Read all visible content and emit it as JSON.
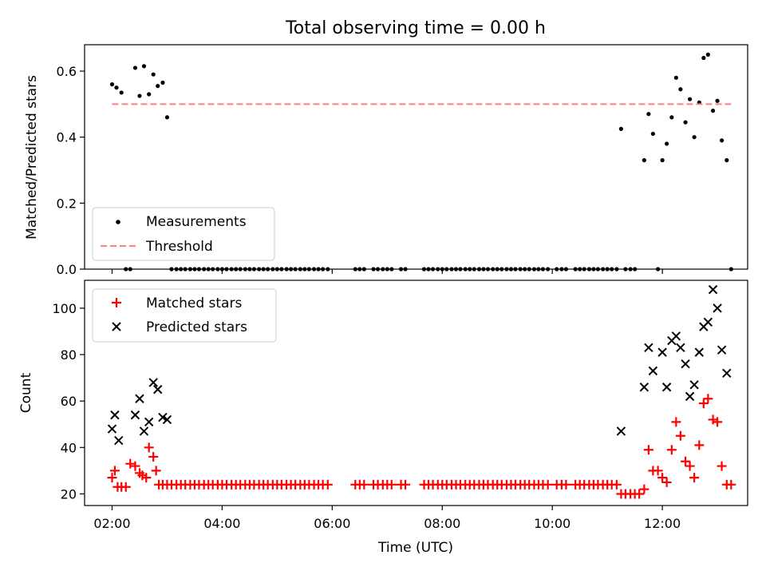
{
  "chart_data": {
    "title": "Total observing time = 0.00 h",
    "xlabel": "Time (UTC)",
    "x_ticks": [
      {
        "label": "02:00",
        "hours": 2
      },
      {
        "label": "04:00",
        "hours": 4
      },
      {
        "label": "06:00",
        "hours": 6
      },
      {
        "label": "08:00",
        "hours": 8
      },
      {
        "label": "10:00",
        "hours": 10
      },
      {
        "label": "12:00",
        "hours": 12
      }
    ],
    "xlim_hours": [
      1.5,
      13.55
    ],
    "panels": [
      {
        "type": "scatter",
        "ylabel": "Matched/Predicted stars",
        "ylim": [
          0,
          0.68
        ],
        "y_ticks": [
          "0.0",
          "0.2",
          "0.4",
          "0.6"
        ],
        "y_tick_values": [
          0,
          0.2,
          0.4,
          0.6
        ],
        "legend_position": "lower-left",
        "series": [
          {
            "name": "Measurements",
            "marker": "dot",
            "color": "#000000",
            "x_hours": [
              2.0,
              2.08,
              2.17,
              2.25,
              2.33,
              2.42,
              2.5,
              2.58,
              2.67,
              2.75,
              2.83,
              2.92,
              3.0,
              3.08,
              3.17,
              3.25,
              3.33,
              3.42,
              3.5,
              3.58,
              3.67,
              3.75,
              3.83,
              3.92,
              4.0,
              4.08,
              4.17,
              4.25,
              4.33,
              4.42,
              4.5,
              4.58,
              4.67,
              4.75,
              4.83,
              4.92,
              5.0,
              5.08,
              5.17,
              5.25,
              5.33,
              5.42,
              5.5,
              5.58,
              5.67,
              5.75,
              5.83,
              5.92,
              6.42,
              6.5,
              6.58,
              6.75,
              6.83,
              6.92,
              7.0,
              7.08,
              7.25,
              7.33,
              7.67,
              7.75,
              7.83,
              7.92,
              8.0,
              8.08,
              8.17,
              8.25,
              8.33,
              8.42,
              8.5,
              8.58,
              8.67,
              8.75,
              8.83,
              8.92,
              9.0,
              9.08,
              9.17,
              9.25,
              9.33,
              9.42,
              9.5,
              9.58,
              9.67,
              9.75,
              9.83,
              9.92,
              10.08,
              10.17,
              10.25,
              10.42,
              10.5,
              10.58,
              10.67,
              10.75,
              10.83,
              10.92,
              11.0,
              11.08,
              11.17,
              11.33,
              11.42,
              11.5,
              11.25,
              11.67,
              11.75,
              11.83,
              11.92,
              12.0,
              12.08,
              12.17,
              12.25,
              12.33,
              12.42,
              12.5,
              12.58,
              12.67,
              12.75,
              12.83,
              12.92,
              13.0,
              13.08,
              13.17,
              13.25
            ],
            "y": [
              0.56,
              0.55,
              0.535,
              0.0,
              0.0,
              0.61,
              0.525,
              0.615,
              0.53,
              0.59,
              0.555,
              0.565,
              0.46,
              0,
              0,
              0,
              0,
              0,
              0,
              0,
              0,
              0,
              0,
              0,
              0,
              0,
              0,
              0,
              0,
              0,
              0,
              0,
              0,
              0,
              0,
              0,
              0,
              0,
              0,
              0,
              0,
              0,
              0,
              0,
              0,
              0,
              0,
              0,
              0,
              0,
              0,
              0,
              0,
              0,
              0,
              0,
              0,
              0,
              0,
              0,
              0,
              0,
              0,
              0,
              0,
              0,
              0,
              0,
              0,
              0,
              0,
              0,
              0,
              0,
              0,
              0,
              0,
              0,
              0,
              0,
              0,
              0,
              0,
              0,
              0,
              0,
              0,
              0,
              0,
              0,
              0,
              0,
              0,
              0,
              0,
              0,
              0,
              0,
              0,
              0,
              0,
              0,
              0.425,
              0.33,
              0.47,
              0.41,
              0.0,
              0.33,
              0.38,
              0.46,
              0.58,
              0.545,
              0.445,
              0.515,
              0.4,
              0.505,
              0.64,
              0.65,
              0.48,
              0.51,
              0.39,
              0.33,
              0.0
            ]
          },
          {
            "name": "Threshold",
            "type": "line",
            "style": "dashed",
            "color": "#ff7f7f",
            "x_hours": [
              2.0,
              13.25
            ],
            "y": [
              0.5,
              0.5
            ]
          }
        ]
      },
      {
        "type": "scatter",
        "ylabel": "Count",
        "ylim": [
          15,
          112
        ],
        "y_ticks": [
          "20",
          "40",
          "60",
          "80",
          "100"
        ],
        "y_tick_values": [
          20,
          40,
          60,
          80,
          100
        ],
        "legend_position": "upper-left",
        "series": [
          {
            "name": "Matched stars",
            "marker": "plus",
            "color": "#ff0000",
            "x_hours": [
              2.0,
              2.05,
              2.1,
              2.17,
              2.25,
              2.33,
              2.42,
              2.5,
              2.55,
              2.62,
              2.67,
              2.75,
              2.8,
              2.85,
              2.92,
              3.0,
              3.08,
              3.17,
              3.25,
              3.33,
              3.42,
              3.5,
              3.58,
              3.67,
              3.75,
              3.83,
              3.92,
              4.0,
              4.08,
              4.17,
              4.25,
              4.33,
              4.42,
              4.5,
              4.58,
              4.67,
              4.75,
              4.83,
              4.92,
              5.0,
              5.08,
              5.17,
              5.25,
              5.33,
              5.42,
              5.5,
              5.58,
              5.67,
              5.75,
              5.83,
              5.92,
              6.42,
              6.5,
              6.58,
              6.75,
              6.83,
              6.92,
              7.0,
              7.08,
              7.25,
              7.33,
              7.67,
              7.75,
              7.83,
              7.92,
              8.0,
              8.08,
              8.17,
              8.25,
              8.33,
              8.42,
              8.5,
              8.58,
              8.67,
              8.75,
              8.83,
              8.92,
              9.0,
              9.08,
              9.17,
              9.25,
              9.33,
              9.42,
              9.5,
              9.58,
              9.67,
              9.75,
              9.83,
              9.92,
              10.08,
              10.17,
              10.25,
              10.42,
              10.5,
              10.58,
              10.67,
              10.75,
              10.83,
              10.92,
              11.0,
              11.08,
              11.17,
              11.25,
              11.33,
              11.42,
              11.5,
              11.58,
              11.67,
              11.75,
              11.83,
              11.92,
              12.0,
              12.08,
              12.17,
              12.25,
              12.33,
              12.42,
              12.5,
              12.58,
              12.67,
              12.75,
              12.83,
              12.92,
              13.0,
              13.08,
              13.17,
              13.25
            ],
            "y": [
              27,
              30,
              23,
              23,
              23,
              33,
              32,
              29,
              28,
              27,
              40,
              36,
              30,
              24,
              24,
              24,
              24,
              24,
              24,
              24,
              24,
              24,
              24,
              24,
              24,
              24,
              24,
              24,
              24,
              24,
              24,
              24,
              24,
              24,
              24,
              24,
              24,
              24,
              24,
              24,
              24,
              24,
              24,
              24,
              24,
              24,
              24,
              24,
              24,
              24,
              24,
              24,
              24,
              24,
              24,
              24,
              24,
              24,
              24,
              24,
              24,
              24,
              24,
              24,
              24,
              24,
              24,
              24,
              24,
              24,
              24,
              24,
              24,
              24,
              24,
              24,
              24,
              24,
              24,
              24,
              24,
              24,
              24,
              24,
              24,
              24,
              24,
              24,
              24,
              24,
              24,
              24,
              24,
              24,
              24,
              24,
              24,
              24,
              24,
              24,
              24,
              24,
              20,
              20,
              20,
              20,
              20,
              22,
              39,
              30,
              30,
              27,
              25,
              39,
              51,
              45,
              34,
              32,
              27,
              41,
              59,
              61,
              52,
              51,
              32,
              24,
              24
            ]
          },
          {
            "name": "Predicted stars",
            "marker": "x",
            "color": "#000000",
            "x_hours": [
              2.0,
              2.05,
              2.12,
              2.42,
              2.5,
              2.58,
              2.67,
              2.75,
              2.83,
              2.92,
              3.0,
              11.25,
              11.67,
              11.75,
              11.83,
              12.0,
              12.08,
              12.17,
              12.25,
              12.33,
              12.42,
              12.5,
              12.58,
              12.67,
              12.75,
              12.83,
              12.92,
              13.0,
              13.08,
              13.17
            ],
            "y": [
              48,
              54,
              43,
              54,
              61,
              47,
              51,
              68,
              65,
              53,
              52,
              47,
              66,
              83,
              73,
              81,
              66,
              86,
              88,
              83,
              76,
              62,
              67,
              81,
              92,
              94,
              108,
              100,
              82,
              72
            ]
          }
        ]
      }
    ]
  }
}
